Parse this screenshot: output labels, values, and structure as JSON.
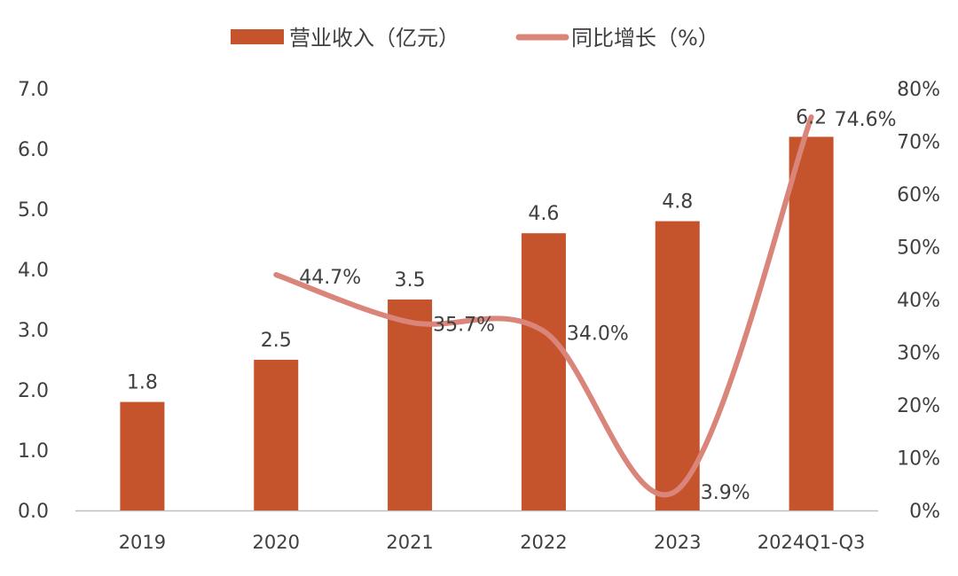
{
  "chart_data": {
    "type": "bar+line",
    "categories": [
      "2019",
      "2020",
      "2021",
      "2022",
      "2023",
      "2024Q1-Q3"
    ],
    "series": [
      {
        "name": "营业收入（亿元）",
        "type": "bar",
        "axis": "left",
        "values": [
          1.8,
          2.5,
          3.5,
          4.6,
          4.8,
          6.2
        ],
        "labels": [
          "1.8",
          "2.5",
          "3.5",
          "4.6",
          "4.8",
          "6.2"
        ],
        "color": "#C5532B"
      },
      {
        "name": "同比增长（%）",
        "type": "line",
        "axis": "right",
        "smooth": true,
        "values": [
          null,
          44.7,
          35.7,
          34.0,
          3.9,
          74.6
        ],
        "labels": [
          null,
          "44.7%",
          "35.7%",
          "34.0%",
          "3.9%",
          "74.6%"
        ],
        "color": "#D9857A"
      }
    ],
    "left_axis": {
      "range": [
        0,
        7
      ],
      "ticks": [
        "0.0",
        "1.0",
        "2.0",
        "3.0",
        "4.0",
        "5.0",
        "6.0",
        "7.0"
      ]
    },
    "right_axis": {
      "range": [
        0,
        80
      ],
      "ticks": [
        "0%",
        "10%",
        "20%",
        "30%",
        "40%",
        "50%",
        "60%",
        "70%",
        "80%"
      ]
    },
    "legend": {
      "position": "top",
      "items": [
        "营业收入（亿元）",
        "同比增长（%）"
      ]
    },
    "grid": false
  }
}
